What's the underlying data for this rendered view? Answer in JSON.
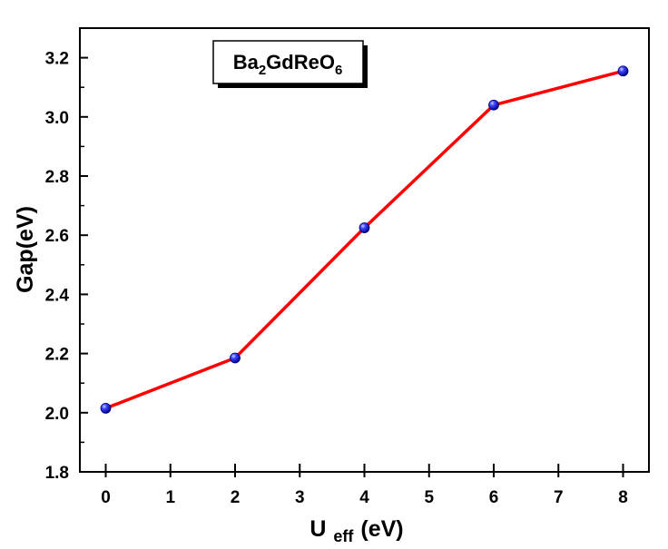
{
  "chart_data": {
    "type": "line",
    "title": "",
    "label_box": {
      "base": "Ba",
      "s1": "2",
      "mid": "GdReO",
      "s2": "6"
    },
    "xlabel": {
      "main": "U",
      "sub": "eff",
      "unit": "(eV)"
    },
    "ylabel": "Gap(eV)",
    "xlim": [
      -0.4,
      8.4
    ],
    "ylim": [
      1.8,
      3.3
    ],
    "x_ticks": [
      0,
      1,
      2,
      3,
      4,
      5,
      6,
      7,
      8
    ],
    "y_ticks": [
      1.8,
      2.0,
      2.2,
      2.4,
      2.6,
      2.8,
      3.0,
      3.2
    ],
    "series": [
      {
        "x": [
          0,
          2,
          4,
          6,
          8
        ],
        "y": [
          2.015,
          2.185,
          2.625,
          3.04,
          3.155
        ],
        "line_color": "#ff0000",
        "marker_color": "#1a1aff"
      }
    ]
  }
}
